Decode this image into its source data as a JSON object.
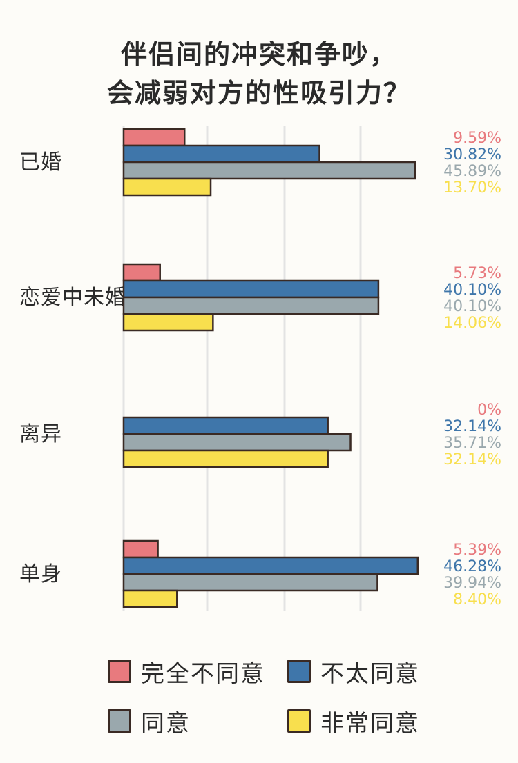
{
  "title": {
    "line1": "伴侣间的冲突和争吵，",
    "line2": "会减弱对方的性吸引力？"
  },
  "colors": {
    "strongly_disagree": "#e87a7e",
    "disagree": "#3f76aa",
    "agree": "#9aa8ad",
    "strongly_agree": "#f8df4e",
    "outline": "#3a2a24",
    "grid": "#e3e3e3"
  },
  "legend": {
    "items": [
      {
        "label": "完全不同意",
        "color": "#e87a7e"
      },
      {
        "label": "不太同意",
        "color": "#3f76aa"
      },
      {
        "label": "同意",
        "color": "#9aa8ad"
      },
      {
        "label": "非常同意",
        "color": "#f8df4e"
      }
    ]
  },
  "chart_data": {
    "type": "bar",
    "orientation": "horizontal",
    "title": "伴侣间的冲突和争吵，会减弱对方的性吸引力？",
    "categories": [
      "已婚",
      "恋爱中未婚",
      "离异",
      "单身"
    ],
    "series": [
      {
        "name": "完全不同意",
        "color": "#e87a7e",
        "values": [
          9.59,
          5.73,
          0,
          5.39
        ],
        "labels": [
          "9.59%",
          "5.73%",
          "0%",
          "5.39%"
        ]
      },
      {
        "name": "不太同意",
        "color": "#3f76aa",
        "values": [
          30.82,
          40.1,
          32.14,
          46.28
        ],
        "labels": [
          "30.82%",
          "40.10%",
          "32.14%",
          "46.28%"
        ]
      },
      {
        "name": "同意",
        "color": "#9aa8ad",
        "values": [
          45.89,
          40.1,
          35.71,
          39.94
        ],
        "labels": [
          "45.89%",
          "40.10%",
          "35.71%",
          "39.94%"
        ]
      },
      {
        "name": "非常同意",
        "color": "#f8df4e",
        "values": [
          13.7,
          14.06,
          32.14,
          8.4
        ],
        "labels": [
          "13.70%",
          "14.06%",
          "32.14%",
          "8.40%"
        ]
      }
    ],
    "grid": true,
    "legend_position": "bottom"
  }
}
